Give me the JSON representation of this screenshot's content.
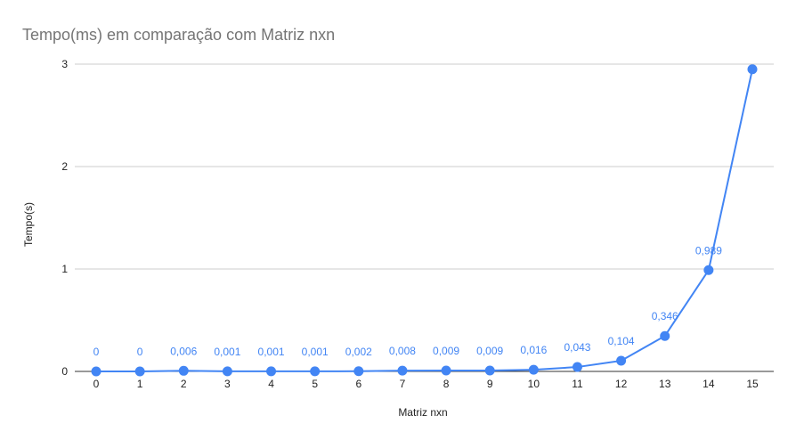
{
  "chart_data": {
    "type": "line",
    "title": "Tempo(ms) em comparação com Matriz nxn",
    "xlabel": "Matriz nxn",
    "ylabel": "Tempo(s)",
    "x": [
      0,
      1,
      2,
      3,
      4,
      5,
      6,
      7,
      8,
      9,
      10,
      11,
      12,
      13,
      14,
      15
    ],
    "series": [
      {
        "values": [
          0,
          0,
          0.006,
          0.001,
          0.001,
          0.001,
          0.002,
          0.008,
          0.009,
          0.009,
          0.016,
          0.043,
          0.104,
          0.346,
          0.989,
          2.95
        ],
        "labels": [
          "0",
          "0",
          "0,006",
          "0,001",
          "0,001",
          "0,001",
          "0,002",
          "0,008",
          "0,009",
          "0,009",
          "0,016",
          "0,043",
          "0,104",
          "0,346",
          "0,989",
          ""
        ]
      }
    ],
    "yticks": [
      "0",
      "1",
      "2",
      "3"
    ],
    "ylim": [
      0,
      3
    ],
    "grid": true,
    "legend": "none",
    "colors": {
      "series": "#4285f4",
      "grid": "#cccccc",
      "title": "#757575"
    }
  }
}
